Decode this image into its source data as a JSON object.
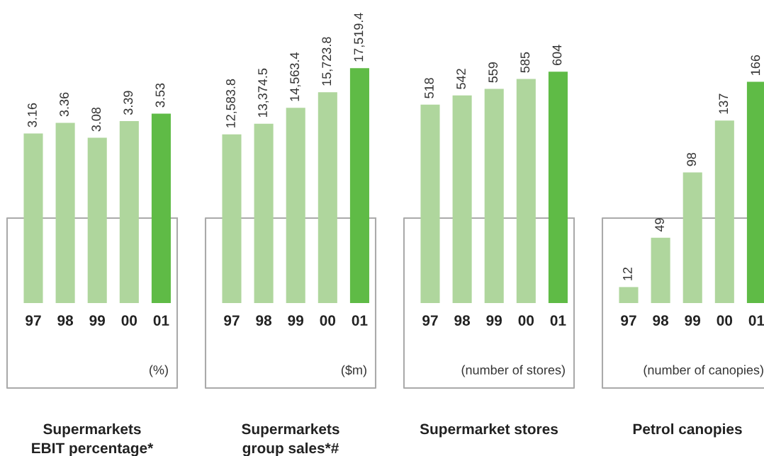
{
  "chart_data": [
    {
      "type": "bar",
      "title": "Supermarkets\nEBIT percentage*",
      "categories": [
        "97",
        "98",
        "99",
        "00",
        "01"
      ],
      "values": [
        3.16,
        3.36,
        3.08,
        3.39,
        3.53
      ],
      "colors": [
        "#afd69d",
        "#afd69d",
        "#afd69d",
        "#afd69d",
        "#5fbb46"
      ],
      "data_labels": true,
      "annotations": [
        "(%)"
      ]
    },
    {
      "type": "bar",
      "title": "Supermarkets\ngroup sales*#",
      "categories": [
        "97",
        "98",
        "99",
        "00",
        "01"
      ],
      "values": [
        12583.8,
        13374.5,
        14563.4,
        15723.8,
        17519.4
      ],
      "value_labels": [
        "12,583.8",
        "13,374.5",
        "14,563.4",
        "15,723.8",
        "17,519.4"
      ],
      "colors": [
        "#afd69d",
        "#afd69d",
        "#afd69d",
        "#afd69d",
        "#5fbb46"
      ],
      "annotations": [
        "($m)"
      ]
    },
    {
      "type": "bar",
      "title": "Supermarket stores",
      "categories": [
        "97",
        "98",
        "99",
        "00",
        "01"
      ],
      "values": [
        518,
        542,
        559,
        585,
        604
      ],
      "colors": [
        "#afd69d",
        "#afd69d",
        "#afd69d",
        "#afd69d",
        "#5fbb46"
      ],
      "data_labels": true,
      "annotations": [
        "(number of stores)"
      ]
    },
    {
      "type": "bar",
      "title": "Petrol canopies",
      "categories": [
        "97",
        "98",
        "99",
        "00",
        "01"
      ],
      "values": [
        12,
        49,
        98,
        137,
        166
      ],
      "colors": [
        "#afd69d",
        "#afd69d",
        "#afd69d",
        "#afd69d",
        "#5fbb46"
      ],
      "data_labels": true,
      "annotations": [
        "(number of canopies)"
      ]
    }
  ]
}
